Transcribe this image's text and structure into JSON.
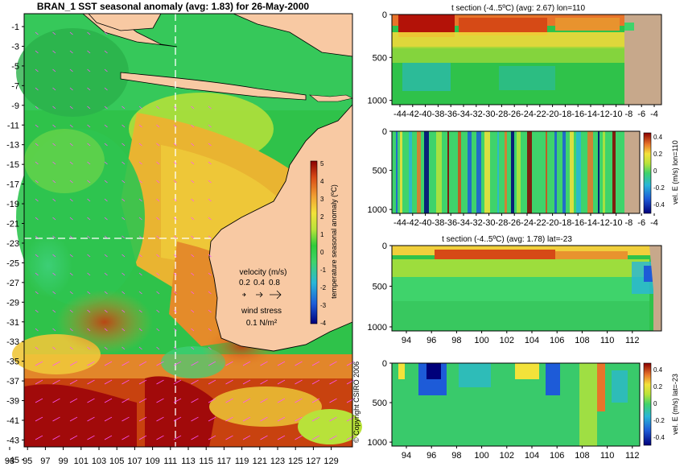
{
  "chart_data": [
    {
      "type": "heatmap",
      "title": "BRAN_1 SST seasonal anomaly  (avg: 1.83) for 26-May-2000",
      "x_ticks": [
        "93",
        "95",
        "97",
        "99",
        "101",
        "103",
        "105",
        "107",
        "109",
        "111",
        "113",
        "115",
        "117",
        "119",
        "121",
        "123",
        "125",
        "127",
        "129"
      ],
      "y_ticks": [
        "-1",
        "-3",
        "-5",
        "-7",
        "-9",
        "-11",
        "-13",
        "-15",
        "-17",
        "-19",
        "-21",
        "-23",
        "-25",
        "-27",
        "-29",
        "-31",
        "-33",
        "-35",
        "-37",
        "-39",
        "-41",
        "-43",
        "-45"
      ],
      "xlim": [
        93,
        130
      ],
      "ylim": [
        -45,
        0
      ],
      "colorbar": {
        "label": "temperature seasonal anomaly (ºC)",
        "ticks": [
          "5",
          "4",
          "3",
          "2",
          "1",
          "0",
          "-1",
          "-2",
          "-3",
          "-4"
        ],
        "range": [
          -4,
          5
        ]
      },
      "velocity_key": {
        "label": "velocity (m/s)",
        "values": [
          "0.2",
          "0.4",
          "0.8"
        ]
      },
      "wind_key": {
        "label": "wind stress",
        "value": "0.1 N/m²"
      },
      "section_lines": {
        "lon": 110,
        "lat": -23
      },
      "copyright": "© Copyright CSIRO 2006"
    },
    {
      "type": "heatmap",
      "title": "t section (-4..5ºC) (avg: 2.67) lon=110",
      "x_ticks": [
        "-44",
        "-42",
        "-40",
        "-38",
        "-36",
        "-34",
        "-32",
        "-30",
        "-28",
        "-26",
        "-24",
        "-22",
        "-20",
        "-18",
        "-16",
        "-14",
        "-12",
        "-10",
        "-8",
        "-6",
        "-4"
      ],
      "y_ticks": [
        "0",
        "500",
        "1000"
      ],
      "xlim": [
        -45,
        -2
      ],
      "ylim": [
        1050,
        0
      ]
    },
    {
      "type": "heatmap",
      "title": "",
      "x_ticks": [
        "-44",
        "-42",
        "-40",
        "-38",
        "-36",
        "-34",
        "-32",
        "-30",
        "-28",
        "-26",
        "-24",
        "-22",
        "-20",
        "-18",
        "-16",
        "-14",
        "-12",
        "-10",
        "-8",
        "-6",
        "-4"
      ],
      "y_ticks": [
        "0",
        "500",
        "1000"
      ],
      "xlim": [
        -45,
        -2
      ],
      "ylim": [
        1050,
        0
      ],
      "colorbar": {
        "label": "vel. E (m/s) lon=110",
        "ticks": [
          "0.4",
          "0.2",
          "0",
          "-0.2",
          "-0.4"
        ],
        "range": [
          -0.5,
          0.5
        ]
      }
    },
    {
      "type": "heatmap",
      "title": "t section (-4..5ºC) (avg: 1.78) lat=-23",
      "x_ticks": [
        "94",
        "96",
        "98",
        "100",
        "102",
        "104",
        "106",
        "108",
        "110",
        "112"
      ],
      "y_ticks": [
        "0",
        "500",
        "1000"
      ],
      "xlim": [
        93,
        114
      ],
      "ylim": [
        1050,
        0
      ]
    },
    {
      "type": "heatmap",
      "title": "",
      "x_ticks": [
        "94",
        "96",
        "98",
        "100",
        "102",
        "104",
        "106",
        "108",
        "110",
        "112"
      ],
      "y_ticks": [
        "0",
        "500",
        "1000"
      ],
      "xlim": [
        93,
        113
      ],
      "ylim": [
        1050,
        0
      ],
      "colorbar": {
        "label": "vel. E (m/s) lat=-23",
        "ticks": [
          "0.4",
          "0.2",
          "0",
          "-0.2",
          "-0.4"
        ],
        "range": [
          -0.5,
          0.5
        ]
      }
    }
  ],
  "colors": {
    "land": "#f8c9a3",
    "section_land": "#c7a88b",
    "arrow": "#ff55ff",
    "section_line": "#ffffff"
  }
}
